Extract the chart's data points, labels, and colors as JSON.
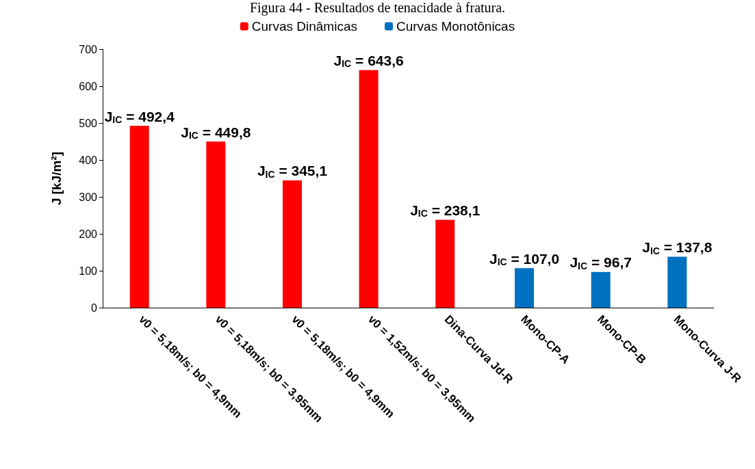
{
  "chart_data": {
    "type": "bar",
    "title": "Figura 44 - Resultados de tenacidade à fratura.",
    "ylabel": "J [kJ/m²]",
    "categories": [
      "v0 = 5,18m/s; b0 = 4,9mm",
      "v0 = 5,18m/s; b0 = 3,95mm",
      "v0 = 5,18m/s; b0 = 4,9mm",
      "v0 = 1,52m/s; b0 = 3,95mm",
      "Dina-Curva Jd-R",
      "Mono-CP-A",
      "Mono-CP-B",
      "Mono-Curva J-R"
    ],
    "series": [
      {
        "name": "Curvas Dinâmicas",
        "color": "#ff0000",
        "values": [
          492.4,
          449.8,
          345.1,
          643.6,
          238.1,
          null,
          null,
          null
        ],
        "value_labels": [
          "J$_{IC}$ = 492,4",
          "J$_{IC}$ = 449,8",
          "J$_{IC}$ = 345,1",
          "J$_{IC}$ = 643,6",
          "J$_{IC}$ = 238,1",
          null,
          null,
          null
        ]
      },
      {
        "name": "Curvas Monotônicas",
        "color": "#0070c0",
        "values": [
          null,
          null,
          null,
          null,
          null,
          107.0,
          96.7,
          137.8
        ],
        "value_labels": [
          null,
          null,
          null,
          null,
          null,
          "J$_{IC}$ = 107,0",
          "J$_{IC}$ = 96,7",
          "J$_{IC}$ = 137,8"
        ]
      }
    ],
    "ylim": [
      0,
      700
    ],
    "yticks": [
      0,
      100,
      200,
      300,
      400,
      500,
      600,
      700
    ],
    "grid": false,
    "legend": "top"
  }
}
